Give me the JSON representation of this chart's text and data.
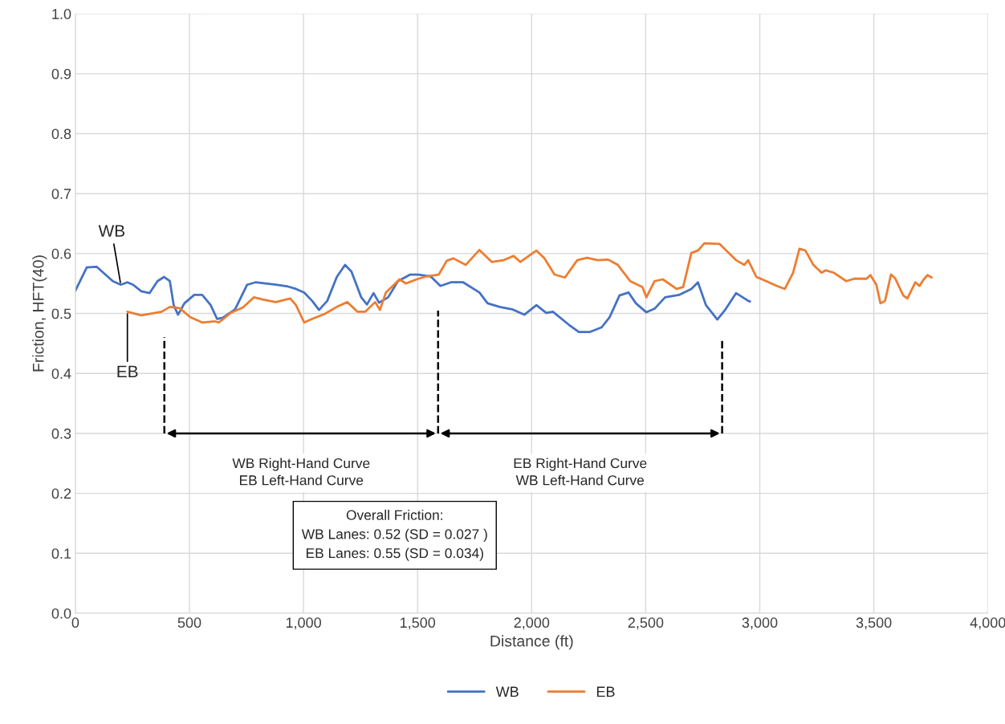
{
  "chart_data": {
    "type": "line",
    "xlabel": "Distance (ft)",
    "ylabel": "Friction, HFT(40)",
    "xlim": [
      0,
      4000
    ],
    "ylim": [
      0,
      1.0
    ],
    "xticks": [
      0,
      500,
      {
        "value": 1000,
        "label": "1,000"
      },
      {
        "value": 1500,
        "label": "1,500"
      },
      {
        "value": 2000,
        "label": "2,000"
      },
      {
        "value": 2500,
        "label": "2,500"
      },
      {
        "value": 3000,
        "label": "3,000"
      },
      {
        "value": 3500,
        "label": "3,500"
      },
      {
        "value": 4000,
        "label": "4,000"
      }
    ],
    "yticks": [
      {
        "value": 0,
        "label": "0.0"
      },
      0.1,
      0.2,
      0.3,
      0.4,
      0.5,
      0.6,
      0.7,
      0.8,
      0.9,
      {
        "value": 1,
        "label": "1.0"
      }
    ],
    "grid": true,
    "legend": "bottom",
    "marker": "none",
    "line_style": "solid",
    "series": [
      {
        "name": "WB",
        "color": "#4472c4",
        "x": [
          0,
          50,
          93,
          164,
          199,
          228,
          253,
          289,
          325,
          360,
          389,
          414,
          431,
          450,
          478,
          521,
          556,
          593,
          621,
          646,
          700,
          753,
          789,
          878,
          932,
          967,
          1003,
          1038,
          1068,
          1104,
          1146,
          1182,
          1210,
          1253,
          1278,
          1307,
          1331,
          1371,
          1414,
          1468,
          1503,
          1557,
          1600,
          1646,
          1700,
          1771,
          1807,
          1860,
          1914,
          1968,
          2021,
          2064,
          2093,
          2164,
          2207,
          2254,
          2307,
          2342,
          2385,
          2425,
          2457,
          2503,
          2539,
          2585,
          2646,
          2700,
          2729,
          2764,
          2814,
          2850,
          2896,
          2950,
          2957
        ],
        "values": [
          0.538,
          0.577,
          0.578,
          0.554,
          0.548,
          0.552,
          0.548,
          0.537,
          0.534,
          0.554,
          0.561,
          0.554,
          0.514,
          0.498,
          0.517,
          0.531,
          0.531,
          0.514,
          0.491,
          0.493,
          0.507,
          0.548,
          0.552,
          0.548,
          0.545,
          0.541,
          0.535,
          0.521,
          0.506,
          0.521,
          0.561,
          0.581,
          0.57,
          0.527,
          0.515,
          0.534,
          0.518,
          0.527,
          0.554,
          0.565,
          0.565,
          0.562,
          0.546,
          0.552,
          0.552,
          0.535,
          0.517,
          0.511,
          0.507,
          0.498,
          0.514,
          0.501,
          0.503,
          0.481,
          0.469,
          0.469,
          0.477,
          0.494,
          0.53,
          0.535,
          0.517,
          0.502,
          0.508,
          0.527,
          0.531,
          0.541,
          0.552,
          0.514,
          0.49,
          0.507,
          0.534,
          0.521,
          0.52
        ]
      },
      {
        "name": "EB",
        "color": "#ed7d31",
        "x": [
          228,
          289,
          378,
          414,
          457,
          503,
          556,
          610,
          629,
          681,
          735,
          782,
          825,
          878,
          942,
          967,
          1003,
          1038,
          1092,
          1146,
          1192,
          1236,
          1271,
          1314,
          1335,
          1361,
          1421,
          1449,
          1496,
          1539,
          1593,
          1628,
          1657,
          1711,
          1771,
          1825,
          1878,
          1921,
          1950,
          2021,
          2056,
          2100,
          2146,
          2200,
          2243,
          2289,
          2335,
          2378,
          2432,
          2486,
          2503,
          2539,
          2575,
          2635,
          2664,
          2700,
          2729,
          2757,
          2824,
          2896,
          2932,
          2949,
          2985,
          3010,
          3075,
          3110,
          3146,
          3174,
          3200,
          3235,
          3271,
          3289,
          3325,
          3379,
          3414,
          3468,
          3485,
          3511,
          3529,
          3549,
          3575,
          3593,
          3629,
          3647,
          3682,
          3700,
          3717,
          3735,
          3753
        ],
        "values": [
          0.503,
          0.497,
          0.503,
          0.511,
          0.509,
          0.494,
          0.485,
          0.487,
          0.485,
          0.501,
          0.51,
          0.527,
          0.523,
          0.519,
          0.525,
          0.514,
          0.485,
          0.491,
          0.499,
          0.511,
          0.519,
          0.503,
          0.503,
          0.519,
          0.506,
          0.535,
          0.557,
          0.55,
          0.557,
          0.562,
          0.565,
          0.588,
          0.592,
          0.581,
          0.606,
          0.586,
          0.589,
          0.596,
          0.586,
          0.605,
          0.592,
          0.565,
          0.56,
          0.589,
          0.593,
          0.589,
          0.59,
          0.581,
          0.554,
          0.544,
          0.527,
          0.554,
          0.557,
          0.541,
          0.544,
          0.601,
          0.605,
          0.617,
          0.616,
          0.589,
          0.581,
          0.589,
          0.561,
          0.557,
          0.546,
          0.541,
          0.568,
          0.608,
          0.605,
          0.581,
          0.568,
          0.572,
          0.568,
          0.554,
          0.558,
          0.558,
          0.564,
          0.548,
          0.517,
          0.521,
          0.565,
          0.559,
          0.53,
          0.525,
          0.552,
          0.546,
          0.556,
          0.564,
          0.56
        ]
      }
    ],
    "ref_lines": [
      {
        "axis": "x",
        "value": 390,
        "line_style": "dashed",
        "color": "#000000"
      },
      {
        "axis": "x",
        "value": 1590,
        "line_style": "dashed",
        "color": "#000000"
      },
      {
        "axis": "x",
        "value": 2835,
        "line_style": "dashed",
        "color": "#000000"
      }
    ],
    "annotations": [
      {
        "text": "WB",
        "x": 199,
        "y": 0.548
      },
      {
        "text": "EB",
        "x": 228,
        "y": 0.503
      },
      "WB Right-Hand Curve\nEB Left-Hand Curve",
      "EB Right-Hand Curve\nWB Left-Hand Curve",
      "Overall Friction:\nWB Lanes: 0.52 (SD = 0.027 )\nEB Lanes: 0.55 (SD = 0.034)"
    ]
  }
}
